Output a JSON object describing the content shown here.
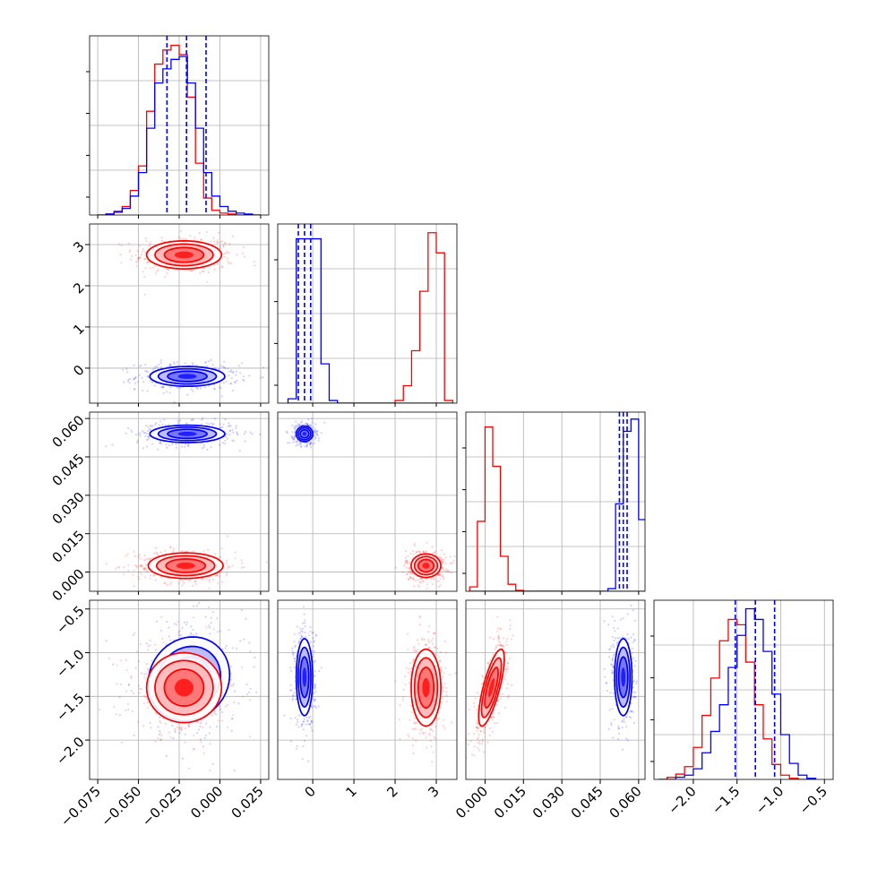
{
  "chart_data": {
    "type": "corner",
    "title": "",
    "colors": {
      "red": "#ff0000",
      "blue": "#0000ff"
    },
    "series": [
      {
        "name": "",
        "color": "#ff0000"
      },
      {
        "name": "",
        "color": "#0000ff"
      }
    ],
    "parameters": [
      {
        "range": [
          -0.08,
          0.03
        ],
        "ticks": [
          {
            "v": -0.075,
            "label": "−0.075"
          },
          {
            "v": -0.05,
            "label": "−0.050"
          },
          {
            "v": -0.025,
            "label": "−0.025"
          },
          {
            "v": 0.0,
            "label": "0.000"
          },
          {
            "v": 0.025,
            "label": "0.025"
          }
        ],
        "hist_edges": [
          -0.075,
          -0.07,
          -0.065,
          -0.06,
          -0.055,
          -0.05,
          -0.045,
          -0.04,
          -0.035,
          -0.03,
          -0.025,
          -0.02,
          -0.015,
          -0.01,
          -0.005,
          0.0,
          0.005,
          0.01,
          0.015,
          0.02,
          0.025
        ],
        "hist_red": [
          0,
          1,
          4,
          9,
          26,
          52,
          110,
          160,
          175,
          180,
          170,
          125,
          55,
          18,
          5,
          2,
          1,
          0,
          0,
          0
        ],
        "hist_blue": [
          0,
          1,
          3,
          7,
          20,
          45,
          92,
          140,
          155,
          165,
          168,
          140,
          92,
          45,
          20,
          9,
          4,
          2,
          1,
          0
        ],
        "hist_max": 190,
        "quantiles_blue": [
          -0.0325,
          -0.0205,
          -0.0085
        ]
      },
      {
        "range": [
          -0.85,
          3.5
        ],
        "ticks": [
          {
            "v": 0,
            "label": "0"
          },
          {
            "v": 1,
            "label": "1"
          },
          {
            "v": 2,
            "label": "2"
          },
          {
            "v": 3,
            "label": "3"
          }
        ],
        "hist_edges": [
          -0.6,
          -0.4,
          -0.2,
          0.0,
          0.2,
          0.4,
          0.6,
          0.8,
          1.0,
          1.2,
          1.4,
          1.6,
          1.8,
          2.0,
          2.2,
          2.4,
          2.6,
          2.8,
          3.0,
          3.2,
          3.4
        ],
        "hist_red": [
          0,
          0,
          0,
          0,
          0,
          0,
          0,
          0,
          0,
          0,
          0,
          0,
          0,
          3,
          20,
          60,
          128,
          195,
          172,
          3
        ],
        "hist_blue": [
          5,
          188,
          188,
          188,
          45,
          3,
          0,
          0,
          0,
          0,
          0,
          0,
          0,
          0,
          0,
          0,
          0,
          0,
          0,
          0
        ],
        "hist_max": 205,
        "quantiles_blue": [
          -0.35,
          -0.2,
          -0.05
        ]
      },
      {
        "range": [
          -0.0075,
          0.0625
        ],
        "ticks": [
          {
            "v": 0.0,
            "label": "0.000"
          },
          {
            "v": 0.015,
            "label": "0.015"
          },
          {
            "v": 0.03,
            "label": "0.030"
          },
          {
            "v": 0.045,
            "label": "0.045"
          },
          {
            "v": 0.06,
            "label": "0.060"
          }
        ],
        "hist_edges": [
          -0.006,
          -0.003,
          0.0,
          0.003,
          0.006,
          0.009,
          0.012,
          0.015,
          0.018,
          0.021,
          0.024,
          0.027,
          0.03,
          0.033,
          0.036,
          0.039,
          0.042,
          0.045,
          0.048,
          0.051,
          0.054,
          0.057,
          0.06,
          0.063
        ],
        "hist_red": [
          5,
          80,
          188,
          143,
          40,
          8,
          1,
          0,
          0,
          0,
          0,
          0,
          0,
          0,
          0,
          0,
          0,
          0,
          0,
          0,
          0,
          0,
          0
        ],
        "hist_blue": [
          0,
          0,
          0,
          0,
          0,
          0,
          0,
          0,
          0,
          0,
          0,
          0,
          0,
          0,
          0,
          0,
          0,
          0,
          3,
          100,
          183,
          197,
          82
        ],
        "hist_max": 205,
        "quantiles_blue": [
          0.0525,
          0.054,
          0.0555
        ]
      },
      {
        "range": [
          -2.45,
          -0.4
        ],
        "ticks": [
          {
            "v": -2.0,
            "label": "−2.0"
          },
          {
            "v": -1.5,
            "label": "−1.5"
          },
          {
            "v": -1.0,
            "label": "−1.0"
          },
          {
            "v": -0.5,
            "label": "−0.5"
          }
        ],
        "hist_edges": [
          -2.4,
          -2.3,
          -2.2,
          -2.1,
          -2.0,
          -1.9,
          -1.8,
          -1.7,
          -1.6,
          -1.5,
          -1.4,
          -1.3,
          -1.2,
          -1.1,
          -1.0,
          -0.9,
          -0.8,
          -0.7,
          -0.6
        ],
        "hist_red": [
          0,
          2,
          5,
          12,
          30,
          60,
          95,
          130,
          150,
          145,
          110,
          70,
          38,
          14,
          4,
          1,
          0,
          0
        ],
        "hist_blue": [
          0,
          0,
          2,
          4,
          10,
          25,
          45,
          70,
          105,
          135,
          160,
          150,
          120,
          80,
          42,
          15,
          4,
          1
        ],
        "hist_max": 168,
        "quantiles_blue": [
          -1.52,
          -1.29,
          -1.07
        ]
      }
    ],
    "blobs": {
      "1,0": [
        {
          "c": "red",
          "mx": -0.022,
          "my": 2.75,
          "sx": 0.0115,
          "sy": 0.17,
          "r": 0
        },
        {
          "c": "blue",
          "mx": -0.02,
          "my": -0.2,
          "sx": 0.0115,
          "sy": 0.12,
          "r": 0
        }
      ],
      "2,0": [
        {
          "c": "red",
          "mx": -0.021,
          "my": 0.0025,
          "sx": 0.0115,
          "sy": 0.0025,
          "r": 0
        },
        {
          "c": "blue",
          "mx": -0.02,
          "my": 0.054,
          "sx": 0.0115,
          "sy": 0.0017,
          "r": 0
        }
      ],
      "2,1": [
        {
          "c": "red",
          "mx": 2.75,
          "my": 0.0025,
          "sx": 0.18,
          "sy": 0.0023,
          "r": 0
        },
        {
          "c": "blue",
          "mx": -0.2,
          "my": 0.054,
          "sx": 0.1,
          "sy": 0.0015,
          "r": 0
        }
      ],
      "3,0": [
        {
          "c": "blue",
          "mx": -0.019,
          "my": -1.3,
          "sx": 0.0125,
          "sy": 0.24,
          "r": 0.1
        },
        {
          "c": "red",
          "mx": -0.022,
          "my": -1.4,
          "sx": 0.0115,
          "sy": 0.2,
          "r": 0
        }
      ],
      "3,1": [
        {
          "c": "blue",
          "mx": -0.2,
          "my": -1.28,
          "sx": 0.1,
          "sy": 0.22,
          "r": 0
        },
        {
          "c": "red",
          "mx": 2.75,
          "my": -1.4,
          "sx": 0.18,
          "sy": 0.22,
          "r": 0
        }
      ],
      "3,2": [
        {
          "c": "red",
          "mx": 0.0025,
          "my": -1.4,
          "sx": 0.0025,
          "sy": 0.22,
          "r": 0.75
        },
        {
          "c": "blue",
          "mx": 0.054,
          "my": -1.28,
          "sx": 0.0017,
          "sy": 0.22,
          "r": 0
        }
      ]
    }
  }
}
